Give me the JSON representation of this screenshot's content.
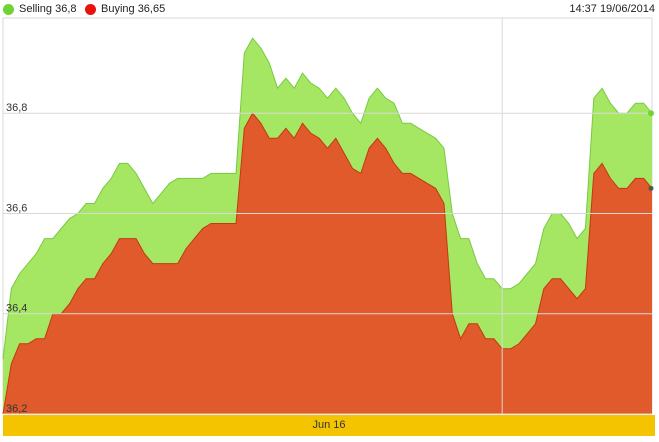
{
  "legend": {
    "selling_label": "Selling 36,8",
    "buying_label": "Buying 36,65"
  },
  "timestamp": "14:37 19/06/2014",
  "colors": {
    "selling": "#a5e763",
    "selling_line": "#79c943",
    "buying": "#e05a2b",
    "buying_line": "#c23a0e",
    "legend_selling_dot": "#6fd332",
    "legend_buying_dot": "#e8120c",
    "axis_bar": "#f5c400",
    "grid": "#d9d9d9"
  },
  "chart_data": {
    "type": "area",
    "ylim": [
      36.2,
      36.99
    ],
    "yticks": [
      {
        "value": 36.2,
        "label": "36,2"
      },
      {
        "value": 36.4,
        "label": "36,4"
      },
      {
        "value": 36.6,
        "label": "36,6"
      },
      {
        "value": 36.8,
        "label": "36,8"
      }
    ],
    "x_tick": {
      "label": "Jun 16",
      "index": 60
    },
    "series": [
      {
        "name": "Selling",
        "values": [
          36.31,
          36.45,
          36.48,
          36.5,
          36.52,
          36.55,
          36.55,
          36.57,
          36.59,
          36.6,
          36.62,
          36.62,
          36.65,
          36.67,
          36.7,
          36.7,
          36.68,
          36.65,
          36.62,
          36.64,
          36.66,
          36.67,
          36.67,
          36.67,
          36.67,
          36.68,
          36.68,
          36.68,
          36.68,
          36.92,
          36.95,
          36.93,
          36.9,
          36.85,
          36.87,
          36.85,
          36.88,
          36.86,
          36.85,
          36.83,
          36.85,
          36.83,
          36.8,
          36.78,
          36.83,
          36.85,
          36.83,
          36.82,
          36.78,
          36.78,
          36.77,
          36.76,
          36.75,
          36.73,
          36.6,
          36.55,
          36.55,
          36.5,
          36.47,
          36.47,
          36.45,
          36.45,
          36.46,
          36.48,
          36.5,
          36.57,
          36.6,
          36.6,
          36.58,
          36.55,
          36.57,
          36.83,
          36.85,
          36.82,
          36.8,
          36.8,
          36.82,
          36.82,
          36.8
        ]
      },
      {
        "name": "Buying",
        "values": [
          36.2,
          36.3,
          36.34,
          36.34,
          36.35,
          36.35,
          36.4,
          36.4,
          36.42,
          36.45,
          36.47,
          36.47,
          36.5,
          36.52,
          36.55,
          36.55,
          36.55,
          36.52,
          36.5,
          36.5,
          36.5,
          36.5,
          36.53,
          36.55,
          36.57,
          36.58,
          36.58,
          36.58,
          36.58,
          36.77,
          36.8,
          36.78,
          36.75,
          36.75,
          36.77,
          36.75,
          36.78,
          36.76,
          36.75,
          36.73,
          36.75,
          36.72,
          36.69,
          36.68,
          36.73,
          36.75,
          36.73,
          36.7,
          36.68,
          36.68,
          36.67,
          36.66,
          36.65,
          36.62,
          36.4,
          36.35,
          36.38,
          36.38,
          36.35,
          36.35,
          36.33,
          36.33,
          36.34,
          36.36,
          36.38,
          36.45,
          36.47,
          36.47,
          36.45,
          36.43,
          36.45,
          36.68,
          36.7,
          36.67,
          36.65,
          36.65,
          36.67,
          36.67,
          36.65
        ]
      }
    ]
  }
}
